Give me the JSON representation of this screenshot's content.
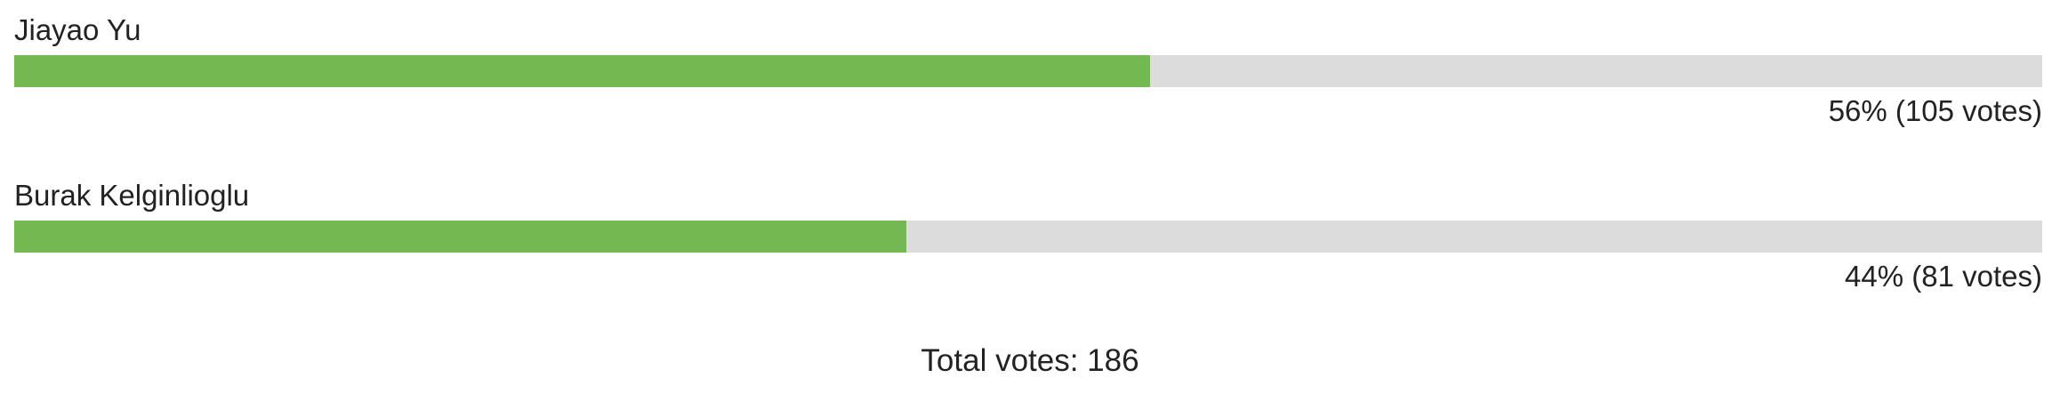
{
  "poll": {
    "options": [
      {
        "name": "Jiayao Yu",
        "percent_label": "56% (105 votes)",
        "share": 0.56
      },
      {
        "name": "Burak Kelginlioglu",
        "percent_label": "44% (81 votes)",
        "share": 0.44
      }
    ],
    "total_label": "Total votes: 186"
  },
  "colors": {
    "bar_fill": "#73b851",
    "bar_track": "#dcdcdc"
  }
}
